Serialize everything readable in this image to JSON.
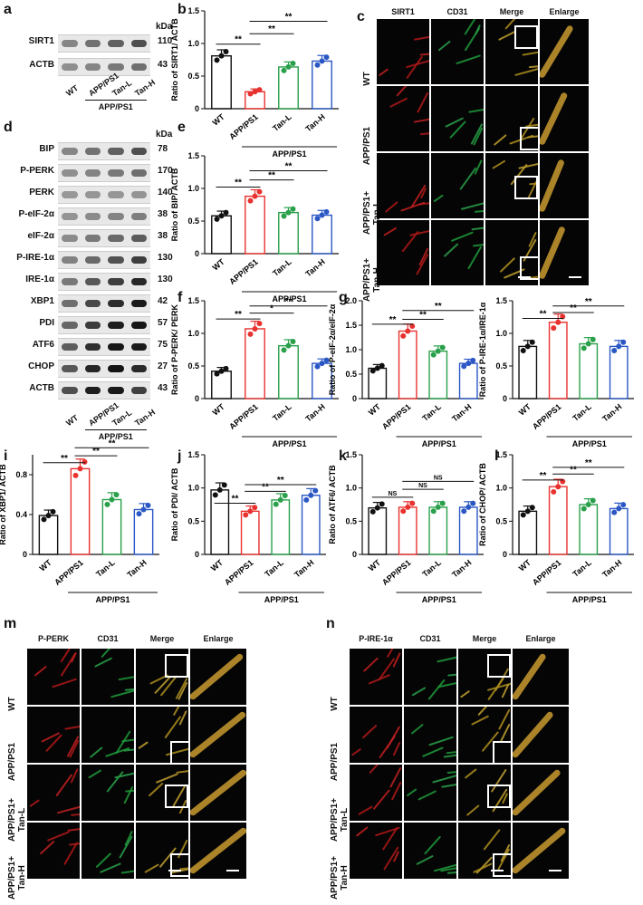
{
  "panels": {
    "a": "a",
    "b": "b",
    "c": "c",
    "d": "d",
    "e": "e",
    "f": "f",
    "g": "g",
    "i": "i",
    "j": "j",
    "k": "k",
    "l": "l",
    "m": "m",
    "n": "n"
  },
  "blot_a": {
    "kda": "kDa",
    "rows": [
      {
        "label": "SIRT1",
        "kda": "110"
      },
      {
        "label": "ACTB",
        "kda": "43"
      }
    ],
    "lanes": [
      "WT",
      "APP/PS1",
      "Tan-L",
      "Tan-H"
    ],
    "group": "APP/PS1"
  },
  "blot_d": {
    "kda": "kDa",
    "rows": [
      {
        "label": "BIP",
        "kda": "78"
      },
      {
        "label": "P-PERK",
        "kda": "170"
      },
      {
        "label": "PERK",
        "kda": "140"
      },
      {
        "label": "P-eIF-2α",
        "kda": "38"
      },
      {
        "label": "eIF-2α",
        "kda": "38"
      },
      {
        "label": "P-IRE-1α",
        "kda": "130"
      },
      {
        "label": "IRE-1α",
        "kda": "130"
      },
      {
        "label": "XBP1",
        "kda": "42"
      },
      {
        "label": "PDI",
        "kda": "57"
      },
      {
        "label": "ATF6",
        "kda": "75"
      },
      {
        "label": "CHOP",
        "kda": "27"
      },
      {
        "label": "ACTB",
        "kda": "43"
      }
    ],
    "lanes": [
      "WT",
      "APP/PS1",
      "Tan-L",
      "Tan-H"
    ],
    "group": "APP/PS1"
  },
  "chart_data": [
    {
      "type": "bar",
      "panel": "b",
      "ylabel": "Ratio of SIRT1/ ACTB",
      "ylim": [
        0,
        1.5
      ],
      "yticks": [
        0,
        0.5,
        1.0,
        1.5
      ],
      "categories": [
        "WT",
        "APP/PS1",
        "Tan-L",
        "Tan-H"
      ],
      "values": [
        0.81,
        0.26,
        0.64,
        0.73
      ],
      "group": "APP/PS1",
      "sig": [
        {
          "from": 0,
          "to": 1,
          "y": 0.99,
          "label": "**"
        },
        {
          "from": 1,
          "to": 2,
          "y": 1.15,
          "label": "**"
        },
        {
          "from": 1,
          "to": 3,
          "y": 1.34,
          "label": "**"
        }
      ]
    },
    {
      "type": "bar",
      "panel": "e",
      "ylabel": "Ratio of BIP/ ACTB",
      "ylim": [
        0,
        1.5
      ],
      "yticks": [
        0,
        0.5,
        1.0,
        1.5
      ],
      "categories": [
        "WT",
        "APP/PS1",
        "Tan-L",
        "Tan-H"
      ],
      "values": [
        0.58,
        0.88,
        0.63,
        0.59
      ],
      "group": "APP/PS1",
      "sig": [
        {
          "from": 0,
          "to": 1,
          "y": 1.02,
          "label": "**"
        },
        {
          "from": 1,
          "to": 2,
          "y": 1.13,
          "label": "**"
        },
        {
          "from": 1,
          "to": 3,
          "y": 1.27,
          "label": "**"
        }
      ]
    },
    {
      "type": "bar",
      "panel": "f",
      "ylabel": "Ratio of P-PERK/ PERK",
      "ylim": [
        0,
        1.5
      ],
      "yticks": [
        0,
        0.5,
        1.0,
        1.5
      ],
      "categories": [
        "WT",
        "APP/PS1",
        "Tan-L",
        "Tan-H"
      ],
      "values": [
        0.42,
        1.07,
        0.81,
        0.54
      ],
      "group": "APP/PS1",
      "sig": [
        {
          "from": 0,
          "to": 1,
          "y": 1.22,
          "label": "**"
        },
        {
          "from": 1,
          "to": 2,
          "y": 1.31,
          "label": "*"
        },
        {
          "from": 1,
          "to": 3,
          "y": 1.42,
          "label": "**"
        }
      ]
    },
    {
      "type": "bar",
      "panel": "g",
      "ylabel": "Ratio of P-eIF-2α/eIF-2α",
      "ylim": [
        0,
        2.0
      ],
      "yticks": [
        0,
        0.5,
        1.0,
        1.5,
        2.0
      ],
      "categories": [
        "WT",
        "APP/PS1",
        "Tan-L",
        "Tan-H"
      ],
      "values": [
        0.62,
        1.38,
        0.97,
        0.72
      ],
      "group": "APP/PS1",
      "sig": [
        {
          "from": 0,
          "to": 1,
          "y": 1.52,
          "label": "**"
        },
        {
          "from": 1,
          "to": 2,
          "y": 1.62,
          "label": "**"
        },
        {
          "from": 1,
          "to": 3,
          "y": 1.8,
          "label": "**"
        }
      ]
    },
    {
      "type": "bar",
      "panel": "h",
      "ylabel": "Ratio of P-IRE-1α/IRE-1α",
      "ylim": [
        0,
        1.5
      ],
      "yticks": [
        0,
        0.5,
        1.0,
        1.5
      ],
      "categories": [
        "WT",
        "APP/PS1",
        "Tan-L",
        "Tan-H"
      ],
      "values": [
        0.8,
        1.17,
        0.84,
        0.8
      ],
      "group": "APP/PS1",
      "sig": [
        {
          "from": 0,
          "to": 1,
          "y": 1.23,
          "label": "**"
        },
        {
          "from": 1,
          "to": 2,
          "y": 1.32,
          "label": "**"
        },
        {
          "from": 1,
          "to": 3,
          "y": 1.42,
          "label": "**"
        }
      ]
    },
    {
      "type": "bar",
      "panel": "i",
      "ylabel": "Ratio of XBP1/ ACTB",
      "ylim": [
        0,
        1.0
      ],
      "yticks": [
        0,
        0.4,
        0.8
      ],
      "categories": [
        "WT",
        "APP/PS1",
        "Tan-L",
        "Tan-H"
      ],
      "values": [
        0.39,
        0.86,
        0.55,
        0.45
      ],
      "group": "APP/PS1",
      "sig": [
        {
          "from": 0,
          "to": 1,
          "y": 0.92,
          "label": "**"
        },
        {
          "from": 1,
          "to": 2,
          "y": 0.99,
          "label": "**"
        },
        {
          "from": 1,
          "to": 3,
          "y": 1.07,
          "label": "**"
        }
      ]
    },
    {
      "type": "bar",
      "panel": "j",
      "ylabel": "Ratio of PDI/ ACTB",
      "ylim": [
        0,
        1.5
      ],
      "yticks": [
        0,
        0.5,
        1.0,
        1.5
      ],
      "categories": [
        "WT",
        "APP/PS1",
        "Tan-L",
        "Tan-H"
      ],
      "values": [
        0.97,
        0.65,
        0.82,
        0.89
      ],
      "group": "APP/PS1",
      "sig": [
        {
          "from": 0,
          "to": 1,
          "y": 0.77,
          "label": "**"
        },
        {
          "from": 1,
          "to": 2,
          "y": 0.95,
          "label": "**"
        },
        {
          "from": 1,
          "to": 3,
          "y": 1.05,
          "label": "**"
        }
      ]
    },
    {
      "type": "bar",
      "panel": "k",
      "ylabel": "Ratio of ATF6/ ACTB",
      "ylim": [
        0,
        1.5
      ],
      "yticks": [
        0,
        0.5,
        1.0,
        1.5
      ],
      "categories": [
        "WT",
        "APP/PS1",
        "Tan-L",
        "Tan-H"
      ],
      "values": [
        0.7,
        0.71,
        0.71,
        0.71
      ],
      "group": "APP/PS1",
      "sig": [
        {
          "from": 0,
          "to": 1,
          "y": 0.86,
          "label": "NS"
        },
        {
          "from": 1,
          "to": 2,
          "y": 0.98,
          "label": "NS"
        },
        {
          "from": 1,
          "to": 3,
          "y": 1.1,
          "label": "NS"
        }
      ]
    },
    {
      "type": "bar",
      "panel": "l",
      "ylabel": "Ratio of CHOP/ ACTB",
      "ylim": [
        0,
        1.5
      ],
      "yticks": [
        0,
        0.5,
        1.0,
        1.5
      ],
      "categories": [
        "WT",
        "APP/PS1",
        "Tan-L",
        "Tan-H"
      ],
      "values": [
        0.65,
        1.02,
        0.75,
        0.69
      ],
      "group": "APP/PS1",
      "sig": [
        {
          "from": 0,
          "to": 1,
          "y": 1.12,
          "label": "**"
        },
        {
          "from": 1,
          "to": 2,
          "y": 1.21,
          "label": "**"
        },
        {
          "from": 1,
          "to": 3,
          "y": 1.31,
          "label": "**"
        }
      ]
    }
  ],
  "colors": {
    "WT": "#111111",
    "APP/PS1": "#e8322f",
    "Tan-L": "#2aa04a",
    "Tan-H": "#2b57c5"
  },
  "panel_c": {
    "headers": [
      "SIRT1",
      "CD31",
      "Merge",
      "Enlarge"
    ],
    "rows": [
      "WT",
      "APP/PS1",
      "APP/PS1+\nTan-L",
      "APP/PS1+\nTan-H"
    ]
  },
  "panel_m": {
    "headers": [
      "P-PERK",
      "CD31",
      "Merge",
      "Enlarge"
    ],
    "rows": [
      "WT",
      "APP/PS1",
      "APP/PS1+\nTan-L",
      "APP/PS1+\nTan-H"
    ]
  },
  "panel_n": {
    "headers": [
      "P-IRE-1α",
      "CD31",
      "Merge",
      "Enlarge"
    ],
    "rows": [
      "WT",
      "APP/PS1",
      "APP/PS1+\nTan-L",
      "APP/PS1+\nTan-H"
    ]
  }
}
